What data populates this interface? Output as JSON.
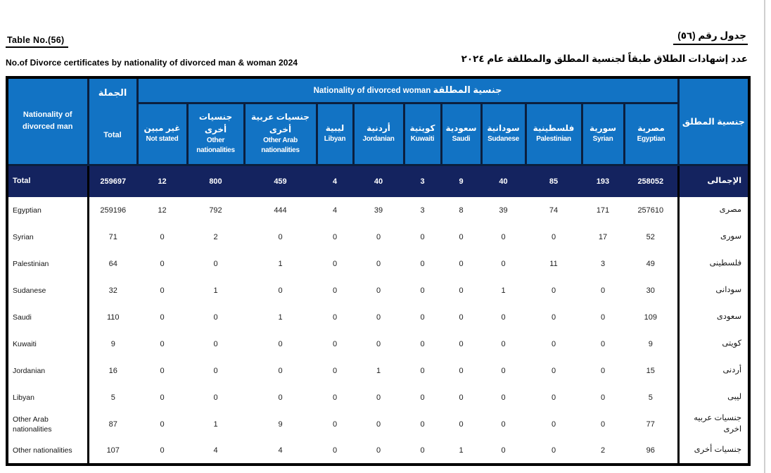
{
  "title": {
    "en_table_no": "Table  No.(56)",
    "ar_table_no": "جدول رقم (٥٦)",
    "en_subtitle": "No.of  Divorce certificates by nationality of divorced man & woman 2024",
    "ar_subtitle": "عدد إشهادات الطلاق طبقاً لجنسية المطلق والمطلقة عام  ٢٠٢٤"
  },
  "table": {
    "corner_header": {
      "en": "Nationality of divorced man"
    },
    "total_col": {
      "ar": "الجملة",
      "en": "Total"
    },
    "span_header": {
      "en": "Nationality of divorced  woman",
      "ar": "جنسية المطلقة"
    },
    "right_header": {
      "ar": "جنسية المطلق"
    },
    "woman_columns": [
      {
        "ar": "غير مبين",
        "en": "Not stated"
      },
      {
        "ar": "جنسيات أخرى",
        "en": "Other nationalities"
      },
      {
        "ar": "جنسيات عربية أخرى",
        "en": "Other Arab nationalities"
      },
      {
        "ar": "ليبية",
        "en": "Libyan"
      },
      {
        "ar": "أردنية",
        "en": "Jordanian"
      },
      {
        "ar": "كويتية",
        "en": "Kuwaiti"
      },
      {
        "ar": "سعودية",
        "en": "Saudi"
      },
      {
        "ar": "سودانية",
        "en": "Sudanese"
      },
      {
        "ar": "فلسطينية",
        "en": "Palestinian"
      },
      {
        "ar": "سورية",
        "en": "Syrian"
      },
      {
        "ar": "مصرية",
        "en": "Egyptian"
      }
    ],
    "total_row": {
      "en": "Total",
      "ar": "الإجمالى",
      "total": "259697",
      "values": [
        "12",
        "800",
        "459",
        "4",
        "40",
        "3",
        "9",
        "40",
        "85",
        "193",
        "258052"
      ]
    },
    "rows": [
      {
        "en": "Egyptian",
        "ar": "مصرى",
        "total": "259196",
        "values": [
          "12",
          "792",
          "444",
          "4",
          "39",
          "3",
          "8",
          "39",
          "74",
          "171",
          "257610"
        ]
      },
      {
        "en": "Syrian",
        "ar": "سورى",
        "total": "71",
        "values": [
          "0",
          "2",
          "0",
          "0",
          "0",
          "0",
          "0",
          "0",
          "0",
          "17",
          "52"
        ]
      },
      {
        "en": "Palestinian",
        "ar": "فلسطينى",
        "total": "64",
        "values": [
          "0",
          "0",
          "1",
          "0",
          "0",
          "0",
          "0",
          "0",
          "11",
          "3",
          "49"
        ]
      },
      {
        "en": "Sudanese",
        "ar": "سودانى",
        "total": "32",
        "values": [
          "0",
          "1",
          "0",
          "0",
          "0",
          "0",
          "0",
          "1",
          "0",
          "0",
          "30"
        ]
      },
      {
        "en": "Saudi",
        "ar": "سعودى",
        "total": "110",
        "values": [
          "0",
          "0",
          "1",
          "0",
          "0",
          "0",
          "0",
          "0",
          "0",
          "0",
          "109"
        ]
      },
      {
        "en": "Kuwaiti",
        "ar": "كويتى",
        "total": "9",
        "values": [
          "0",
          "0",
          "0",
          "0",
          "0",
          "0",
          "0",
          "0",
          "0",
          "0",
          "9"
        ]
      },
      {
        "en": "Jordanian",
        "ar": "أردنى",
        "total": "16",
        "values": [
          "0",
          "0",
          "0",
          "0",
          "1",
          "0",
          "0",
          "0",
          "0",
          "0",
          "15"
        ]
      },
      {
        "en": "Libyan",
        "ar": "ليبى",
        "total": "5",
        "values": [
          "0",
          "0",
          "0",
          "0",
          "0",
          "0",
          "0",
          "0",
          "0",
          "0",
          "5"
        ]
      },
      {
        "en": "Other Arab nationalities",
        "ar": "جنسيات عربيه اخرى",
        "total": "87",
        "values": [
          "0",
          "1",
          "9",
          "0",
          "0",
          "0",
          "0",
          "0",
          "0",
          "0",
          "77"
        ]
      },
      {
        "en": "Other nationalities",
        "ar": "جنسيات أخرى",
        "total": "107",
        "values": [
          "0",
          "4",
          "4",
          "0",
          "0",
          "0",
          "1",
          "0",
          "0",
          "2",
          "96"
        ]
      }
    ],
    "colors": {
      "header_blue": "#1273C4",
      "total_navy": "#14235F",
      "border_dark": "#0B1F3E"
    }
  }
}
